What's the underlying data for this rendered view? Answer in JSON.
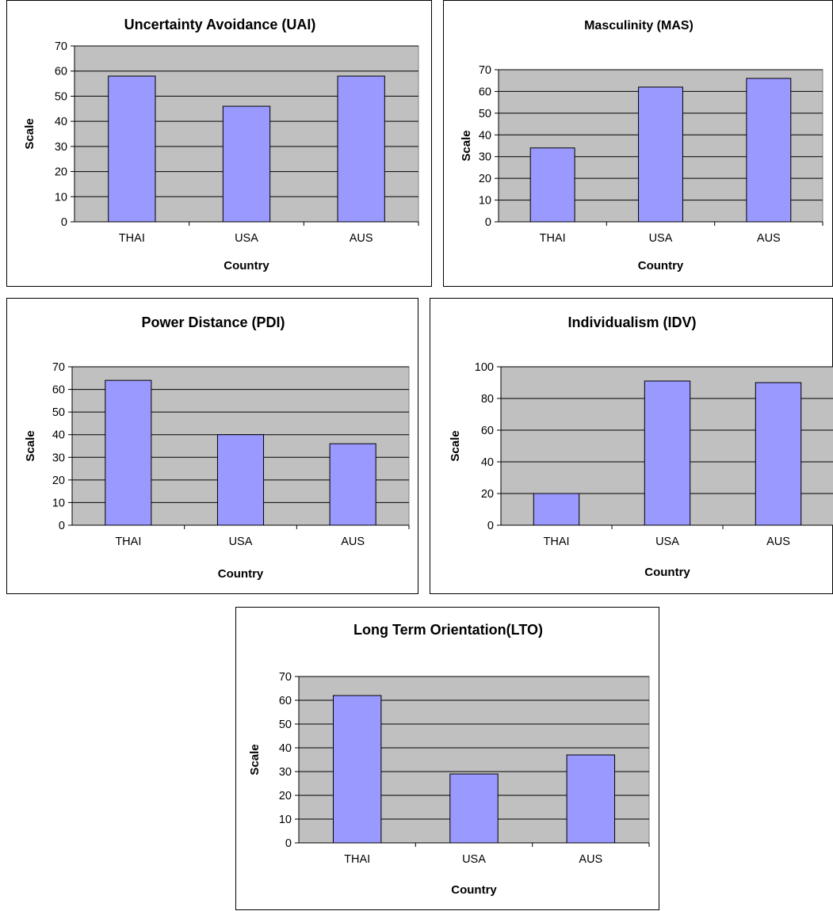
{
  "colors": {
    "plot_area": "#c0c0c0",
    "bar_fill": "#9999ff",
    "bar_stroke": "#000000",
    "gridline": "#000000"
  },
  "chart_data": [
    {
      "type": "bar",
      "title": "Uncertainty Avoidance (UAI)",
      "xlabel": "Country",
      "ylabel": "Scale",
      "categories": [
        "THAI",
        "USA",
        "AUS"
      ],
      "values": [
        58,
        46,
        58
      ],
      "ylim": [
        0,
        70
      ],
      "ystep": 10,
      "grid": true,
      "legend": "none"
    },
    {
      "type": "bar",
      "title": "Masculinity (MAS)",
      "xlabel": "Country",
      "ylabel": "Scale",
      "categories": [
        "THAI",
        "USA",
        "AUS"
      ],
      "values": [
        34,
        62,
        66
      ],
      "ylim": [
        0,
        70
      ],
      "ystep": 10,
      "grid": true,
      "legend": "none"
    },
    {
      "type": "bar",
      "title": "Power Distance (PDI)",
      "xlabel": "Country",
      "ylabel": "Scale",
      "categories": [
        "THAI",
        "USA",
        "AUS"
      ],
      "values": [
        64,
        40,
        36
      ],
      "ylim": [
        0,
        70
      ],
      "ystep": 10,
      "grid": true,
      "legend": "none"
    },
    {
      "type": "bar",
      "title": "Individualism (IDV)",
      "xlabel": "Country",
      "ylabel": "Scale",
      "categories": [
        "THAI",
        "USA",
        "AUS"
      ],
      "values": [
        20,
        91,
        90
      ],
      "ylim": [
        0,
        100
      ],
      "ystep": 20,
      "grid": true,
      "legend": "none"
    },
    {
      "type": "bar",
      "title": "Long Term Orientation(LTO)",
      "xlabel": "Country",
      "ylabel": "Scale",
      "categories": [
        "THAI",
        "USA",
        "AUS"
      ],
      "values": [
        62,
        29,
        37
      ],
      "ylim": [
        0,
        70
      ],
      "ystep": 10,
      "grid": true,
      "legend": "none"
    }
  ]
}
